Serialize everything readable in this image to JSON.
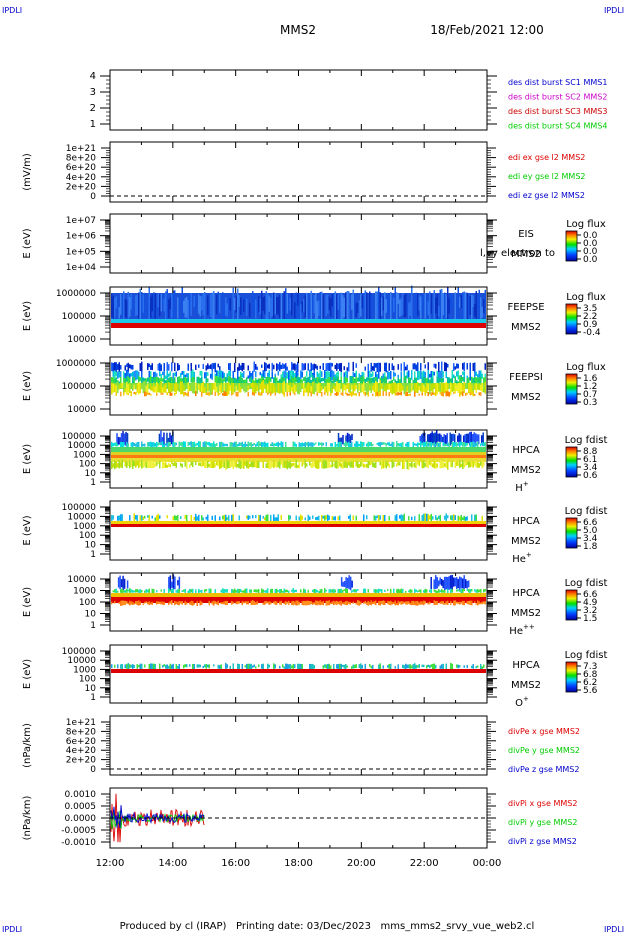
{
  "header": {
    "corner_left": "IPDLI",
    "corner_right": "IPDLI",
    "corner_bottom_left": "IPDLI",
    "corner_bottom_right": "IPDLI",
    "mission": "MMS2",
    "datetime": "18/Feb/2021 12:00"
  },
  "footer": {
    "text": "Produced by cl (IRAP)   Printing date: 03/Dec/2023   mms_mms2_srvy_vue_web2.cl"
  },
  "colors": {
    "red": "#dd0000",
    "green": "#00cc00",
    "blue": "#0000cc",
    "magenta": "#cc00cc",
    "teal": "#00aaaa",
    "orange": "#ff8800",
    "yellow": "#e8e800"
  },
  "chart_data": [
    {
      "type": "line",
      "panel": "des-dist-burst",
      "yticks": [
        "4",
        "3",
        "2",
        "1"
      ],
      "legend": [
        {
          "name": "des dist burst SC1 MMS1",
          "color": "#0000cc"
        },
        {
          "name": "des dist burst SC2 MMS2",
          "color": "#cc00cc"
        },
        {
          "name": "des dist burst SC3 MMS3",
          "color": "#cc0000"
        },
        {
          "name": "des dist burst SC4 MMS4",
          "color": "#00cc00"
        }
      ]
    },
    {
      "type": "line",
      "panel": "edi-e",
      "ylabel": "(mV/m)",
      "yticks": [
        "1e+21",
        "8e+20",
        "6e+20",
        "4e+20",
        "2e+20",
        "0"
      ],
      "legend": [
        {
          "name": "edi ex gse l2 MMS2",
          "color": "#dd0000"
        },
        {
          "name": "edi ey gse l2 MMS2",
          "color": "#00cc00"
        },
        {
          "name": "edi ez gse l2 MMS2",
          "color": "#0000cc"
        }
      ]
    },
    {
      "type": "heatmap",
      "panel": "eis",
      "ylabel": "E (eV)",
      "yticks": [
        "1e+07",
        "1e+06",
        "1e+05",
        "1e+04"
      ],
      "name": "EIS",
      "overlay_label": "l,vy electron to",
      "spacecraft": "MMS2",
      "colorbar_title": "Log flux",
      "colorbar_ticks": [
        "0.0",
        "0.0",
        "0.0",
        "0.0"
      ]
    },
    {
      "type": "heatmap",
      "panel": "feepse",
      "ylabel": "E (eV)",
      "yticks": [
        "1000000",
        "100000",
        "10000"
      ],
      "name": "FEEPSE",
      "spacecraft": "MMS2",
      "colorbar_title": "Log flux",
      "colorbar_ticks": [
        "3.5",
        "2.2",
        "0.9",
        "-0.4"
      ]
    },
    {
      "type": "heatmap",
      "panel": "feepsi",
      "ylabel": "E (eV)",
      "yticks": [
        "1000000",
        "100000",
        "10000"
      ],
      "name": "FEEPSI",
      "spacecraft": "MMS2",
      "colorbar_title": "Log flux",
      "colorbar_ticks": [
        "1.6",
        "1.2",
        "0.7",
        "0.3"
      ]
    },
    {
      "type": "heatmap",
      "panel": "hpca-h",
      "ylabel": "E (eV)",
      "yticks": [
        "100000",
        "10000",
        "1000",
        "100",
        "10",
        "1"
      ],
      "name": "HPCA",
      "spacecraft": "MMS2",
      "species": "H",
      "species_sup": "+",
      "colorbar_title": "Log fdist",
      "colorbar_ticks": [
        "8.8",
        "6.1",
        "3.4",
        "0.6"
      ]
    },
    {
      "type": "heatmap",
      "panel": "hpca-he1",
      "ylabel": "E (eV)",
      "yticks": [
        "100000",
        "10000",
        "1000",
        "100",
        "10",
        "1"
      ],
      "name": "HPCA",
      "spacecraft": "MMS2",
      "species": "He",
      "species_sup": "+",
      "colorbar_title": "Log fdist",
      "colorbar_ticks": [
        "6.6",
        "5.0",
        "3.4",
        "1.8"
      ]
    },
    {
      "type": "heatmap",
      "panel": "hpca-he2",
      "ylabel": "E (eV)",
      "yticks": [
        "10000",
        "1000",
        "100",
        "10",
        "1"
      ],
      "name": "HPCA",
      "spacecraft": "MMS2",
      "species": "He",
      "species_sup": "++",
      "colorbar_title": "Log fdist",
      "colorbar_ticks": [
        "6.6",
        "4.9",
        "3.2",
        "1.5"
      ]
    },
    {
      "type": "heatmap",
      "panel": "hpca-o",
      "ylabel": "E (eV)",
      "yticks": [
        "100000",
        "10000",
        "1000",
        "100",
        "10",
        "1"
      ],
      "name": "HPCA",
      "spacecraft": "MMS2",
      "species": "O",
      "species_sup": "+",
      "colorbar_title": "Log fdist",
      "colorbar_ticks": [
        "7.3",
        "6.8",
        "6.2",
        "5.6"
      ]
    },
    {
      "type": "line",
      "panel": "divpe",
      "ylabel": "(nPa/km)",
      "yticks": [
        "1e+21",
        "8e+20",
        "6e+20",
        "4e+20",
        "2e+20",
        "0"
      ],
      "legend": [
        {
          "name": "divPe x gse MMS2",
          "color": "#dd0000"
        },
        {
          "name": "divPe y gse MMS2",
          "color": "#00cc00"
        },
        {
          "name": "divPe z gse MMS2",
          "color": "#0000cc"
        }
      ]
    },
    {
      "type": "line",
      "panel": "divpi",
      "ylabel": "(nPa/km)",
      "yticks": [
        "0.0010",
        "0.0005",
        "0.0000",
        "-0.0005",
        "-0.0010"
      ],
      "ylim": [
        -0.00125,
        0.00125
      ],
      "data_span_hours": [
        12.0,
        15.0
      ],
      "legend": [
        {
          "name": "divPi x gse MMS2",
          "color": "#dd0000"
        },
        {
          "name": "divPi y gse MMS2",
          "color": "#00cc00"
        },
        {
          "name": "divPi z gse MMS2",
          "color": "#0000cc"
        }
      ]
    }
  ],
  "x_axis": {
    "ticks": [
      "12:00",
      "14:00",
      "16:00",
      "18:00",
      "20:00",
      "22:00",
      "00:00"
    ]
  }
}
